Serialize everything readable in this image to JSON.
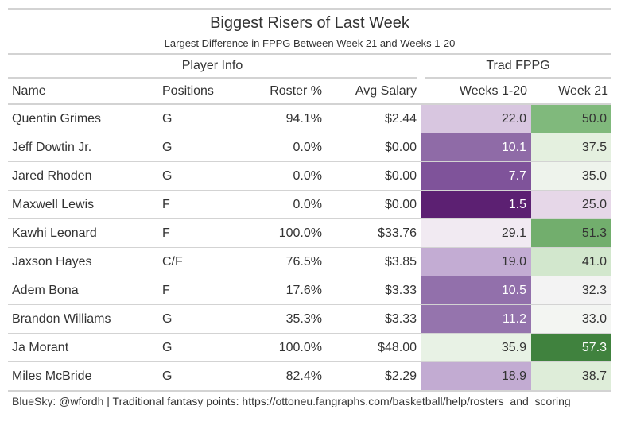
{
  "title": "Biggest Risers of Last Week",
  "subtitle": "Largest Difference in FPPG Between Week 21 and Weeks 1-20",
  "spanners": {
    "player_info": "Player Info",
    "trad_fppg": "Trad FPPG"
  },
  "columns": {
    "name": "Name",
    "positions": "Positions",
    "roster": "Roster %",
    "salary": "Avg Salary",
    "weeks": "Weeks 1-20",
    "week21": "Week 21"
  },
  "rows": [
    {
      "name": "Quentin Grimes",
      "positions": "G",
      "roster": "94.1%",
      "salary": "$2.44",
      "weeks": "22.0",
      "week21": "50.0",
      "weeks_color": "#d8c6e0",
      "week21_color": "#80b97c",
      "weeks_text_color": "#333333",
      "week21_text_color": "#333333"
    },
    {
      "name": "Jeff Dowtin Jr.",
      "positions": "G",
      "roster": "0.0%",
      "salary": "$0.00",
      "weeks": "10.1",
      "week21": "37.5",
      "weeks_color": "#8f6ba7",
      "week21_color": "#e4f0df",
      "weeks_text_color": "#ffffff",
      "week21_text_color": "#333333"
    },
    {
      "name": "Jared Rhoden",
      "positions": "G",
      "roster": "0.0%",
      "salary": "$0.00",
      "weeks": "7.7",
      "week21": "35.0",
      "weeks_color": "#7f539a",
      "week21_color": "#eef3ec",
      "weeks_text_color": "#ffffff",
      "week21_text_color": "#333333"
    },
    {
      "name": "Maxwell Lewis",
      "positions": "F",
      "roster": "0.0%",
      "salary": "$0.00",
      "weeks": "1.5",
      "week21": "25.0",
      "weeks_color": "#5c2072",
      "week21_color": "#e6d7e8",
      "weeks_text_color": "#ffffff",
      "week21_text_color": "#333333"
    },
    {
      "name": "Kawhi Leonard",
      "positions": "F",
      "roster": "100.0%",
      "salary": "$33.76",
      "weeks": "29.1",
      "week21": "51.3",
      "weeks_color": "#f1eaf2",
      "week21_color": "#72ae6d",
      "weeks_text_color": "#333333",
      "week21_text_color": "#333333"
    },
    {
      "name": "Jaxson Hayes",
      "positions": "C/F",
      "roster": "76.5%",
      "salary": "$3.85",
      "weeks": "19.0",
      "week21": "41.0",
      "weeks_color": "#c3acd3",
      "week21_color": "#d2e7cd",
      "weeks_text_color": "#333333",
      "week21_text_color": "#333333"
    },
    {
      "name": "Adem Bona",
      "positions": "F",
      "roster": "17.6%",
      "salary": "$3.33",
      "weeks": "10.5",
      "week21": "32.3",
      "weeks_color": "#9270ab",
      "week21_color": "#f3f3f3",
      "weeks_text_color": "#ffffff",
      "week21_text_color": "#333333"
    },
    {
      "name": "Brandon Williams",
      "positions": "G",
      "roster": "35.3%",
      "salary": "$3.33",
      "weeks": "11.2",
      "week21": "33.0",
      "weeks_color": "#9574ad",
      "week21_color": "#f3f5f2",
      "weeks_text_color": "#ffffff",
      "week21_text_color": "#333333"
    },
    {
      "name": "Ja Morant",
      "positions": "G",
      "roster": "100.0%",
      "salary": "$48.00",
      "weeks": "35.9",
      "week21": "57.3",
      "weeks_color": "#e8f2e5",
      "week21_color": "#40823e",
      "weeks_text_color": "#333333",
      "week21_text_color": "#ffffff"
    },
    {
      "name": "Miles McBride",
      "positions": "G",
      "roster": "82.4%",
      "salary": "$2.29",
      "weeks": "18.9",
      "week21": "38.7",
      "weeks_color": "#c2abd2",
      "week21_color": "#deedd9",
      "weeks_text_color": "#333333",
      "week21_text_color": "#333333"
    }
  ],
  "footer": "BlueSky: @wfordh | Traditional fantasy points: https://ottoneu.fangraphs.com/basketball/help/rosters_and_scoring"
}
